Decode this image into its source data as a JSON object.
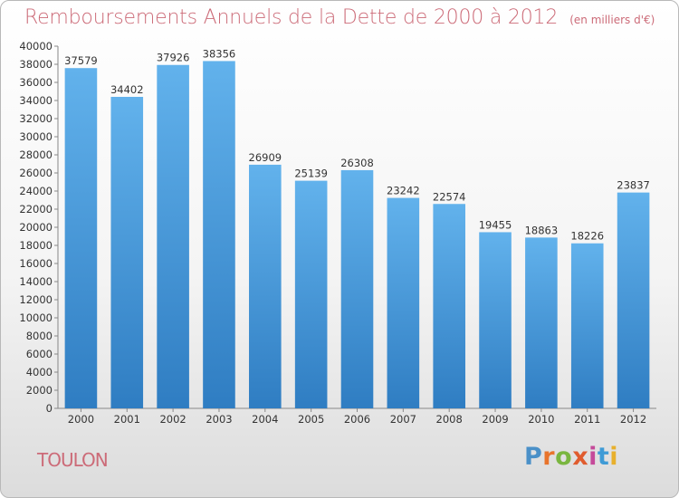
{
  "header": {
    "title": "Remboursements Annuels de la Dette de 2000 à 2012",
    "unit": "(en milliers d'€)"
  },
  "footer": {
    "city": "TOULON",
    "logo": {
      "text": "Proxiti",
      "letters": [
        "P",
        "r",
        "o",
        "x",
        "i",
        "t",
        "i"
      ],
      "colors": [
        "#4a90c8",
        "#e8742c",
        "#7ab640",
        "#e05c2e",
        "#c54a9a",
        "#3f9bd6",
        "#e8b02c"
      ]
    }
  },
  "colors": {
    "bar_top": "#62b2ec",
    "bar_bottom": "#2f7dc2",
    "title": "#cc6b78"
  },
  "chart_data": {
    "type": "bar",
    "categories": [
      "2000",
      "2001",
      "2002",
      "2003",
      "2004",
      "2005",
      "2006",
      "2007",
      "2008",
      "2009",
      "2010",
      "2011",
      "2012"
    ],
    "values": [
      37579,
      34402,
      37926,
      38356,
      26909,
      25139,
      26308,
      23242,
      22574,
      19455,
      18863,
      18226,
      23837
    ],
    "ylim": [
      0,
      40000
    ],
    "ytick_step": 2000,
    "grid": false,
    "title": "Remboursements Annuels de la Dette de 2000 à 2012",
    "subtitle": "(en milliers d'€)"
  }
}
